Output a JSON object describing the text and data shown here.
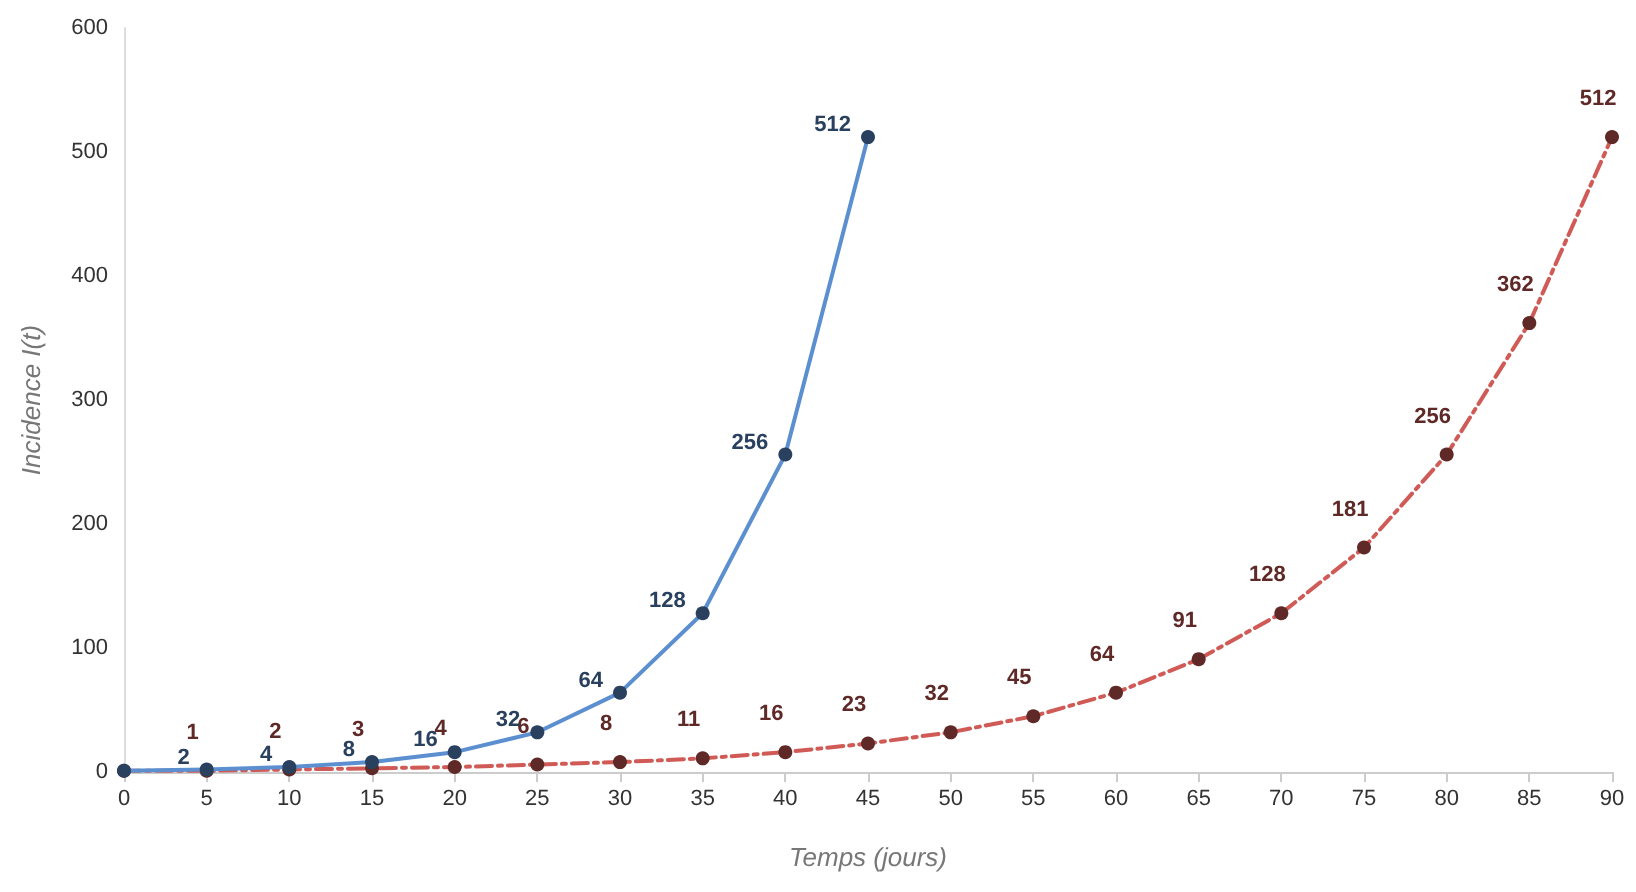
{
  "chart_data": {
    "type": "line",
    "xlabel": "Temps (jours)",
    "ylabel": "Incidence I(t)",
    "xlim": [
      0,
      90
    ],
    "xticks": [
      0,
      5,
      10,
      15,
      20,
      25,
      30,
      35,
      40,
      45,
      50,
      55,
      60,
      65,
      70,
      75,
      80,
      85,
      90
    ],
    "ylim": [
      0,
      600
    ],
    "yticks": [
      0,
      100,
      200,
      300,
      400,
      500,
      600
    ],
    "grid": false,
    "marker": "circle",
    "series": [
      {
        "color": "#5b8fd0",
        "line_style": "solid",
        "x": [
          0,
          5,
          10,
          15,
          20,
          25,
          30,
          35,
          40,
          45
        ],
        "values": [
          1,
          2,
          4,
          8,
          16,
          32,
          64,
          128,
          256,
          512
        ],
        "value_labels": [
          null,
          "2",
          "4",
          "8",
          "16",
          "32",
          "64",
          "128",
          "256",
          "512"
        ]
      },
      {
        "color": "#d05a55",
        "line_style": "dashed",
        "x": [
          0,
          5,
          10,
          15,
          20,
          25,
          30,
          35,
          40,
          45,
          50,
          55,
          60,
          65,
          70,
          75,
          80,
          85,
          90
        ],
        "values": [
          1,
          1,
          2,
          3,
          4,
          6,
          8,
          11,
          16,
          23,
          32,
          45,
          64,
          91,
          128,
          181,
          256,
          362,
          512
        ],
        "value_labels": [
          null,
          "1",
          "2",
          "3",
          "4",
          "6",
          "8",
          "11",
          "16",
          "23",
          "32",
          "45",
          "64",
          "91",
          "128",
          "181",
          "256",
          "362",
          "512"
        ]
      }
    ]
  }
}
